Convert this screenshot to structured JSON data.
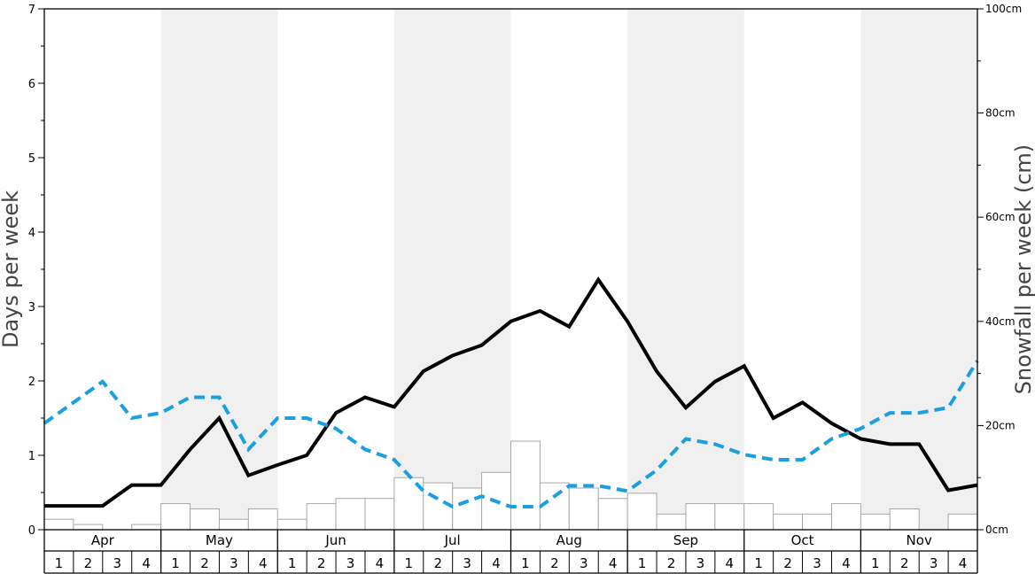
{
  "chart_data": {
    "type": "bar",
    "ylabel_left": "Days per week",
    "ylabel_right": "Snowfall per week (cm)",
    "ylim_left": [
      0,
      7
    ],
    "ylim_right": [
      0,
      100
    ],
    "yticks_left": [
      "0",
      "1",
      "2",
      "3",
      "4",
      "5",
      "6",
      "7"
    ],
    "yticks_right": [
      "0cm",
      "20cm",
      "40cm",
      "60cm",
      "80cm",
      "100cm"
    ],
    "months": [
      "Apr",
      "May",
      "Jun",
      "Jul",
      "Aug",
      "Sep",
      "Oct",
      "Nov"
    ],
    "weeks": [
      "1",
      "2",
      "3",
      "4"
    ],
    "series": [
      {
        "kind": "bar",
        "axis": "right",
        "values": [
          2,
          1,
          0,
          1,
          5,
          4,
          2,
          4,
          2,
          5,
          6,
          6,
          10,
          9,
          8,
          11,
          17,
          9,
          8,
          6,
          7,
          3,
          5,
          5,
          5,
          3,
          3,
          5,
          3,
          4,
          0,
          3
        ]
      },
      {
        "kind": "line",
        "axis": "left",
        "color": "#000000",
        "values": [
          0.32,
          0.32,
          0.32,
          0.6,
          0.6,
          1.08,
          1.5,
          0.73,
          0.87,
          1.0,
          1.57,
          1.78,
          1.65,
          2.13,
          2.34,
          2.48,
          2.8,
          2.94,
          2.73,
          3.36,
          2.8,
          2.13,
          1.64,
          1.99,
          2.2,
          1.5,
          1.71,
          1.43,
          1.22,
          1.15,
          1.15,
          0.53,
          0.6
        ]
      },
      {
        "kind": "line",
        "axis": "left",
        "color": "#1a9fe0",
        "style": "dashed",
        "values": [
          1.43,
          1.71,
          1.99,
          1.5,
          1.57,
          1.78,
          1.78,
          1.08,
          1.5,
          1.5,
          1.36,
          1.08,
          0.94,
          0.52,
          0.31,
          0.45,
          0.31,
          0.31,
          0.59,
          0.59,
          0.52,
          0.8,
          1.22,
          1.15,
          1.01,
          0.94,
          0.94,
          1.22,
          1.36,
          1.57,
          1.57,
          1.64,
          2.27
        ]
      }
    ],
    "grid": false,
    "shaded_alternate_months": true
  }
}
